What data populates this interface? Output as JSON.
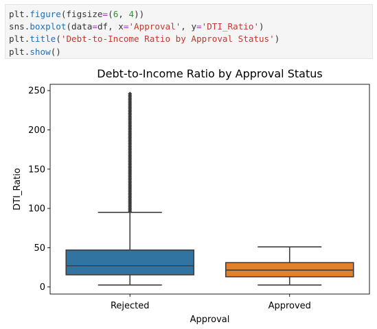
{
  "code": {
    "lines": [
      [
        {
          "t": "plt.",
          "c": ""
        },
        {
          "t": "figure",
          "c": "k-fn"
        },
        {
          "t": "(figsize",
          "c": ""
        },
        {
          "t": "=",
          "c": "k-op"
        },
        {
          "t": "(",
          "c": ""
        },
        {
          "t": "6",
          "c": "k-num"
        },
        {
          "t": ", ",
          "c": ""
        },
        {
          "t": "4",
          "c": "k-num"
        },
        {
          "t": "))",
          "c": ""
        }
      ],
      [
        {
          "t": "sns.",
          "c": ""
        },
        {
          "t": "boxplot",
          "c": "k-fn"
        },
        {
          "t": "(data",
          "c": ""
        },
        {
          "t": "=",
          "c": "k-op"
        },
        {
          "t": "df, x",
          "c": ""
        },
        {
          "t": "=",
          "c": "k-op"
        },
        {
          "t": "'Approval'",
          "c": "k-str"
        },
        {
          "t": ", y",
          "c": ""
        },
        {
          "t": "=",
          "c": "k-op"
        },
        {
          "t": "'DTI_Ratio'",
          "c": "k-str"
        },
        {
          "t": ")",
          "c": ""
        }
      ],
      [
        {
          "t": "plt.",
          "c": ""
        },
        {
          "t": "title",
          "c": "k-fn"
        },
        {
          "t": "(",
          "c": ""
        },
        {
          "t": "'Debt-to-Income Ratio by Approval Status'",
          "c": "k-str"
        },
        {
          "t": ")",
          "c": ""
        }
      ],
      [
        {
          "t": "plt.",
          "c": ""
        },
        {
          "t": "show",
          "c": "k-fn"
        },
        {
          "t": "()",
          "c": ""
        }
      ]
    ]
  },
  "chart_data": {
    "type": "boxplot",
    "title": "Debt-to-Income Ratio by Approval Status",
    "xlabel": "Approval",
    "ylabel": "DTI_Ratio",
    "ylim": [
      -9,
      258
    ],
    "yticks": [
      0,
      50,
      100,
      150,
      200,
      250
    ],
    "grid": false,
    "categories": [
      "Rejected",
      "Approved"
    ],
    "boxes": [
      {
        "category": "Rejected",
        "whisker_low": 2.5,
        "q1": 15.5,
        "median": 27,
        "q3": 47,
        "whisker_high": 95,
        "outliers_from": 95,
        "outliers_to": 246,
        "color": "#3274a1"
      },
      {
        "category": "Approved",
        "whisker_low": 2.5,
        "q1": 13,
        "median": 21.5,
        "q3": 31,
        "whisker_high": 51,
        "color": "#e1812c"
      }
    ]
  }
}
